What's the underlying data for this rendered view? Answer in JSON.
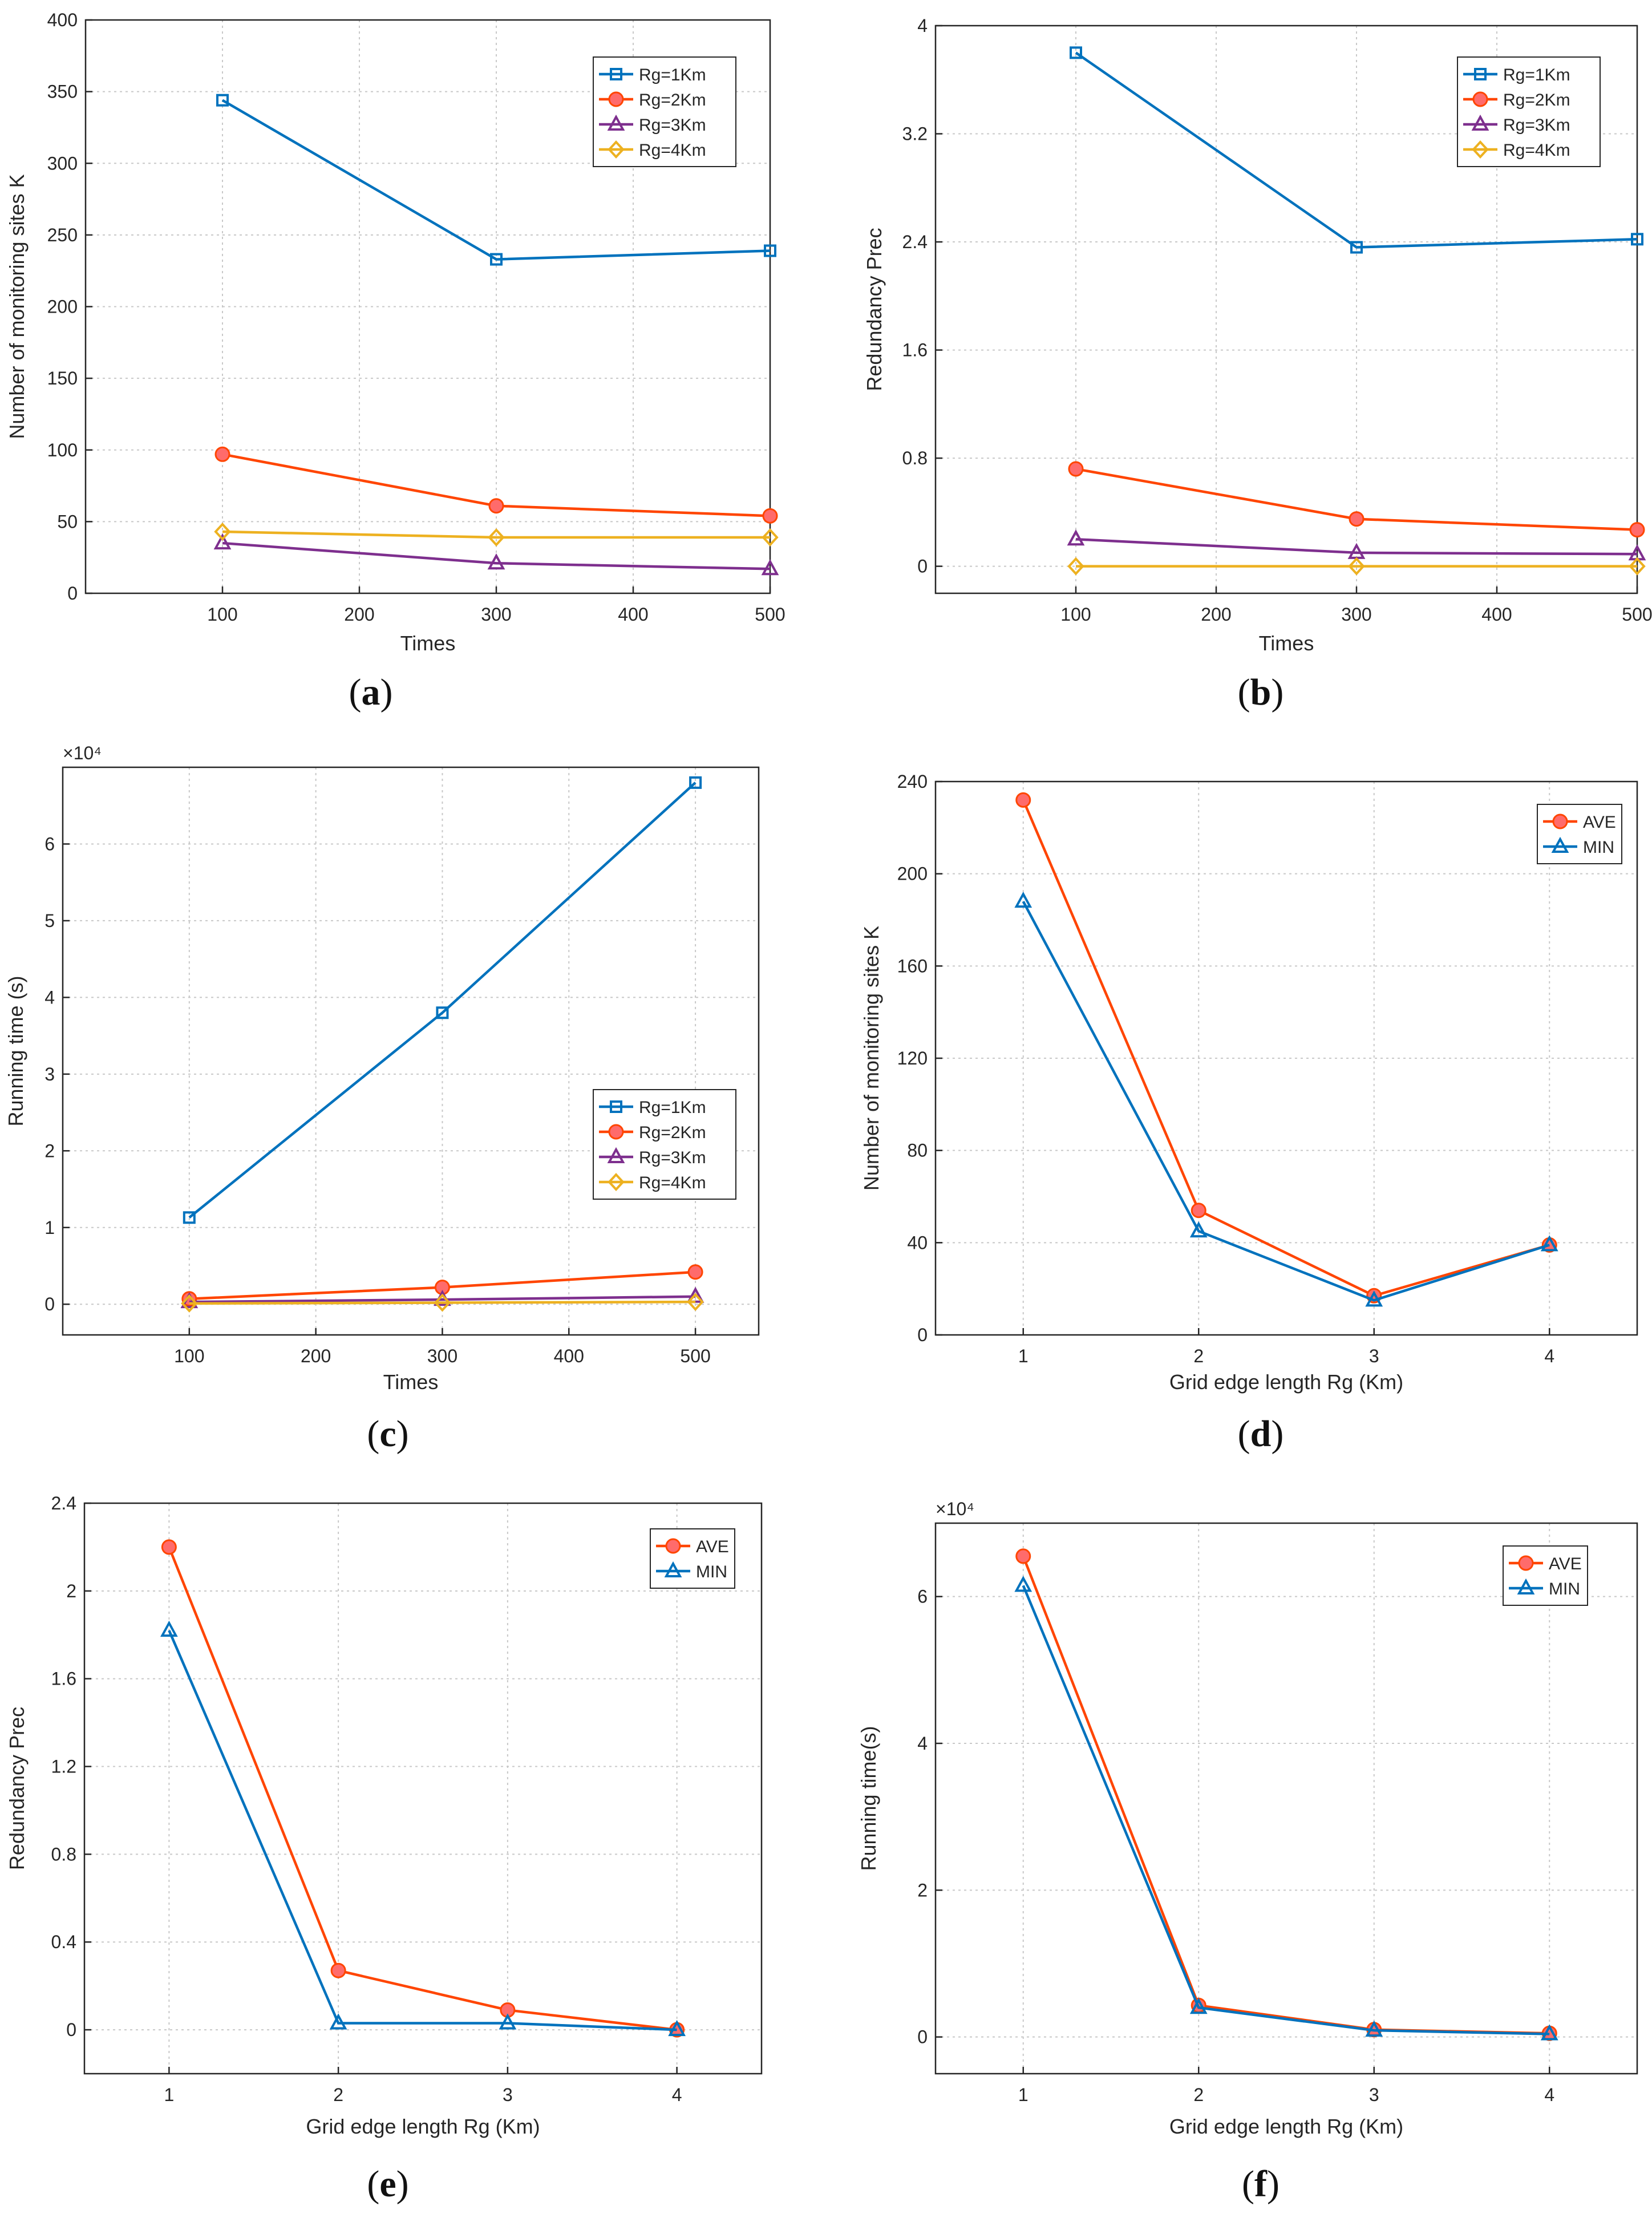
{
  "colors": {
    "Rg=1Km": "#0072BD",
    "Rg=2Km": "#FF4500",
    "Rg=3Km": "#7E2F8E",
    "Rg=4Km": "#EDB120",
    "AVE": "#FF4500",
    "MIN": "#0072BD",
    "grid": "#c8c8c8",
    "axis": "#262626"
  },
  "chart_data": [
    {
      "id": "a",
      "caption": {
        "open": "(",
        "letter": "a",
        "close": ")"
      },
      "type": "line",
      "xlabel": "Times",
      "ylabel": "Number of monitoring sites K",
      "exponent": "",
      "xlim": [
        0,
        500
      ],
      "ylim": [
        0,
        400
      ],
      "xticks": [
        100,
        200,
        300,
        400,
        500
      ],
      "yticks": [
        0,
        50,
        100,
        150,
        200,
        250,
        300,
        350,
        400
      ],
      "legend_position": "top-right",
      "series": [
        {
          "name": "Rg=1Km",
          "marker": "square",
          "x": [
            100,
            300,
            500
          ],
          "y": [
            344,
            233,
            239
          ]
        },
        {
          "name": "Rg=2Km",
          "marker": "circle",
          "x": [
            100,
            300,
            500
          ],
          "y": [
            97,
            61,
            54
          ]
        },
        {
          "name": "Rg=3Km",
          "marker": "triangle",
          "x": [
            100,
            300,
            500
          ],
          "y": [
            35,
            21,
            17
          ]
        },
        {
          "name": "Rg=4Km",
          "marker": "diamond",
          "x": [
            100,
            300,
            500
          ],
          "y": [
            43,
            39,
            39
          ]
        }
      ]
    },
    {
      "id": "b",
      "caption": {
        "open": "(",
        "letter": "b",
        "close": ")"
      },
      "type": "line",
      "xlabel": "Times",
      "ylabel": "Redundancy Prec",
      "exponent": "",
      "xlim": [
        0,
        500
      ],
      "ylim": [
        -0.2,
        4
      ],
      "xticks": [
        100,
        200,
        300,
        400,
        500
      ],
      "yticks": [
        0,
        0.8,
        1.6,
        2.4,
        3.2,
        4
      ],
      "legend_position": "top-right",
      "series": [
        {
          "name": "Rg=1Km",
          "marker": "square",
          "x": [
            100,
            300,
            500
          ],
          "y": [
            3.8,
            2.36,
            2.42
          ]
        },
        {
          "name": "Rg=2Km",
          "marker": "circle",
          "x": [
            100,
            300,
            500
          ],
          "y": [
            0.72,
            0.35,
            0.27
          ]
        },
        {
          "name": "Rg=3Km",
          "marker": "triangle",
          "x": [
            100,
            300,
            500
          ],
          "y": [
            0.2,
            0.1,
            0.09
          ]
        },
        {
          "name": "Rg=4Km",
          "marker": "diamond",
          "x": [
            100,
            300,
            500
          ],
          "y": [
            0,
            0,
            0
          ]
        }
      ]
    },
    {
      "id": "c",
      "caption": {
        "open": "(",
        "letter": "c",
        "close": ")"
      },
      "type": "line",
      "xlabel": "Times",
      "ylabel": "Running time (s)",
      "exponent": "×10⁴",
      "xlim": [
        0,
        550
      ],
      "ylim": [
        -0.4,
        7
      ],
      "xticks": [
        100,
        200,
        300,
        400,
        500
      ],
      "yticks": [
        0,
        1,
        2,
        3,
        4,
        5,
        6
      ],
      "legend_position": "lower-right",
      "series": [
        {
          "name": "Rg=1Km",
          "marker": "square",
          "x": [
            100,
            300,
            500
          ],
          "y": [
            1.13,
            3.8,
            6.8
          ]
        },
        {
          "name": "Rg=2Km",
          "marker": "circle",
          "x": [
            100,
            300,
            500
          ],
          "y": [
            0.07,
            0.22,
            0.42
          ]
        },
        {
          "name": "Rg=3Km",
          "marker": "triangle",
          "x": [
            100,
            300,
            500
          ],
          "y": [
            0.03,
            0.06,
            0.1
          ]
        },
        {
          "name": "Rg=4Km",
          "marker": "diamond",
          "x": [
            100,
            300,
            500
          ],
          "y": [
            0.01,
            0.02,
            0.03
          ]
        }
      ]
    },
    {
      "id": "d",
      "caption": {
        "open": "(",
        "letter": "d",
        "close": ")"
      },
      "type": "line",
      "xlabel": "Grid edge length Rg (Km)",
      "ylabel": "Number of monitoring sites K",
      "exponent": "",
      "xlim": [
        0.5,
        4.5
      ],
      "ylim": [
        0,
        240
      ],
      "xticks": [
        1,
        2,
        3,
        4
      ],
      "yticks": [
        0,
        40,
        80,
        120,
        160,
        200,
        240
      ],
      "legend_position": "top-right",
      "series": [
        {
          "name": "AVE",
          "marker": "circle",
          "x": [
            1,
            2,
            3,
            4
          ],
          "y": [
            232,
            54,
            17,
            39
          ]
        },
        {
          "name": "MIN",
          "marker": "triangle",
          "x": [
            1,
            2,
            3,
            4
          ],
          "y": [
            188,
            45,
            15,
            39
          ]
        }
      ]
    },
    {
      "id": "e",
      "caption": {
        "open": "(",
        "letter": "e",
        "close": ")"
      },
      "type": "line",
      "xlabel": "Grid edge length Rg (Km)",
      "ylabel": "Redundancy Prec",
      "exponent": "",
      "xlim": [
        0.5,
        4.5
      ],
      "ylim": [
        -0.2,
        2.4
      ],
      "xticks": [
        1,
        2,
        3,
        4
      ],
      "yticks": [
        0,
        0.4,
        0.8,
        1.2,
        1.6,
        2,
        2.4
      ],
      "legend_position": "top-right",
      "series": [
        {
          "name": "AVE",
          "marker": "circle",
          "x": [
            1,
            2,
            3,
            4
          ],
          "y": [
            2.2,
            0.27,
            0.09,
            0
          ]
        },
        {
          "name": "MIN",
          "marker": "triangle",
          "x": [
            1,
            2,
            3,
            4
          ],
          "y": [
            1.82,
            0.03,
            0.03,
            0
          ]
        }
      ]
    },
    {
      "id": "f",
      "caption": {
        "open": "(",
        "letter": "f",
        "close": ")"
      },
      "type": "line",
      "xlabel": "Grid edge length Rg (Km)",
      "ylabel": "Running time(s)",
      "exponent": "×10⁴",
      "xlim": [
        0.5,
        4.5
      ],
      "ylim": [
        -0.5,
        7
      ],
      "xticks": [
        1,
        2,
        3,
        4
      ],
      "yticks": [
        0,
        2,
        4,
        6
      ],
      "legend_position": "top-right",
      "series": [
        {
          "name": "AVE",
          "marker": "circle",
          "x": [
            1,
            2,
            3,
            4
          ],
          "y": [
            6.55,
            0.43,
            0.1,
            0.05
          ]
        },
        {
          "name": "MIN",
          "marker": "triangle",
          "x": [
            1,
            2,
            3,
            4
          ],
          "y": [
            6.15,
            0.4,
            0.09,
            0.04
          ]
        }
      ]
    }
  ]
}
